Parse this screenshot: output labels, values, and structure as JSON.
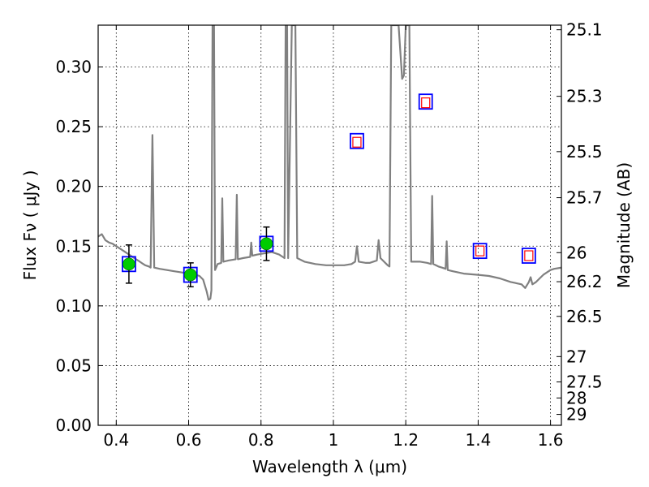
{
  "chart_data": {
    "type": "scatter",
    "title": "",
    "xlabel": "Wavelength  λ (μm)",
    "ylabel": "Flux  Fν  ( μJy )",
    "y2label": "Magnitude (AB)",
    "xlim": [
      0.35,
      1.63
    ],
    "ylim": [
      0.0,
      0.335
    ],
    "grid": true,
    "x_ticks": [
      0.4,
      0.6,
      0.8,
      1.0,
      1.2,
      1.4,
      1.6
    ],
    "x_tick_labels": [
      "0.4",
      "0.6",
      "0.8",
      "1",
      "1.2",
      "1.4",
      "1.6"
    ],
    "y_ticks": [
      0.0,
      0.05,
      0.1,
      0.15,
      0.2,
      0.25,
      0.3
    ],
    "y_tick_labels": [
      "0.00",
      "0.05",
      "0.10",
      "0.15",
      "0.20",
      "0.25",
      "0.30"
    ],
    "y2_ticks": [
      25.1,
      25.3,
      25.5,
      25.7,
      26,
      26.2,
      26.5,
      27,
      27.5,
      28,
      29
    ],
    "y2_tick_labels": [
      "25.1",
      "25.3",
      "25.5",
      "25.7",
      "26",
      "26.2",
      "26.5",
      "27",
      "27.5",
      "28",
      "29"
    ],
    "series": [
      {
        "kind": "line",
        "color": "#808080",
        "points": [
          [
            0.35,
            0.158
          ],
          [
            0.36,
            0.16
          ],
          [
            0.37,
            0.155
          ],
          [
            0.38,
            0.153
          ],
          [
            0.39,
            0.152
          ],
          [
            0.4,
            0.15
          ],
          [
            0.41,
            0.148
          ],
          [
            0.42,
            0.146
          ],
          [
            0.43,
            0.144
          ],
          [
            0.44,
            0.142
          ],
          [
            0.45,
            0.14
          ],
          [
            0.46,
            0.138
          ],
          [
            0.47,
            0.136
          ],
          [
            0.48,
            0.134
          ],
          [
            0.49,
            0.133
          ],
          [
            0.495,
            0.132
          ],
          [
            0.498,
            0.2
          ],
          [
            0.5,
            0.243
          ],
          [
            0.502,
            0.2
          ],
          [
            0.505,
            0.132
          ],
          [
            0.52,
            0.131
          ],
          [
            0.54,
            0.13
          ],
          [
            0.56,
            0.129
          ],
          [
            0.58,
            0.128
          ],
          [
            0.6,
            0.127
          ],
          [
            0.62,
            0.126
          ],
          [
            0.63,
            0.125
          ],
          [
            0.64,
            0.122
          ],
          [
            0.65,
            0.112
          ],
          [
            0.655,
            0.105
          ],
          [
            0.66,
            0.106
          ],
          [
            0.663,
            0.113
          ],
          [
            0.666,
            0.335
          ],
          [
            0.67,
            0.335
          ],
          [
            0.673,
            0.13
          ],
          [
            0.68,
            0.135
          ],
          [
            0.69,
            0.136
          ],
          [
            0.693,
            0.19
          ],
          [
            0.696,
            0.137
          ],
          [
            0.71,
            0.138
          ],
          [
            0.73,
            0.139
          ],
          [
            0.733,
            0.193
          ],
          [
            0.736,
            0.139
          ],
          [
            0.75,
            0.14
          ],
          [
            0.77,
            0.141
          ],
          [
            0.773,
            0.153
          ],
          [
            0.776,
            0.142
          ],
          [
            0.79,
            0.143
          ],
          [
            0.81,
            0.144
          ],
          [
            0.83,
            0.145
          ],
          [
            0.85,
            0.143
          ],
          [
            0.86,
            0.141
          ],
          [
            0.865,
            0.14
          ],
          [
            0.868,
            0.335
          ],
          [
            0.872,
            0.335
          ],
          [
            0.875,
            0.14
          ],
          [
            0.885,
            0.335
          ],
          [
            0.895,
            0.335
          ],
          [
            0.9,
            0.14
          ],
          [
            0.92,
            0.137
          ],
          [
            0.95,
            0.135
          ],
          [
            0.98,
            0.134
          ],
          [
            1.0,
            0.134
          ],
          [
            1.03,
            0.134
          ],
          [
            1.05,
            0.135
          ],
          [
            1.06,
            0.137
          ],
          [
            1.065,
            0.15
          ],
          [
            1.07,
            0.137
          ],
          [
            1.09,
            0.136
          ],
          [
            1.1,
            0.136
          ],
          [
            1.12,
            0.138
          ],
          [
            1.125,
            0.155
          ],
          [
            1.13,
            0.14
          ],
          [
            1.15,
            0.134
          ],
          [
            1.155,
            0.133
          ],
          [
            1.16,
            0.335
          ],
          [
            1.18,
            0.335
          ],
          [
            1.19,
            0.29
          ],
          [
            1.195,
            0.293
          ],
          [
            1.2,
            0.335
          ],
          [
            1.21,
            0.335
          ],
          [
            1.215,
            0.137
          ],
          [
            1.24,
            0.137
          ],
          [
            1.26,
            0.136
          ],
          [
            1.27,
            0.135
          ],
          [
            1.273,
            0.192
          ],
          [
            1.276,
            0.135
          ],
          [
            1.29,
            0.133
          ],
          [
            1.3,
            0.132
          ],
          [
            1.31,
            0.131
          ],
          [
            1.313,
            0.154
          ],
          [
            1.316,
            0.13
          ],
          [
            1.33,
            0.129
          ],
          [
            1.36,
            0.127
          ],
          [
            1.4,
            0.126
          ],
          [
            1.43,
            0.125
          ],
          [
            1.46,
            0.123
          ],
          [
            1.49,
            0.12
          ],
          [
            1.52,
            0.118
          ],
          [
            1.53,
            0.115
          ],
          [
            1.54,
            0.12
          ],
          [
            1.545,
            0.124
          ],
          [
            1.55,
            0.118
          ],
          [
            1.56,
            0.12
          ],
          [
            1.57,
            0.123
          ],
          [
            1.58,
            0.126
          ],
          [
            1.59,
            0.128
          ],
          [
            1.6,
            0.13
          ],
          [
            1.61,
            0.131
          ],
          [
            1.63,
            0.132
          ]
        ]
      },
      {
        "kind": "model_squares",
        "marker_color": "#0000ff",
        "points": [
          [
            0.435,
            0.135
          ],
          [
            0.605,
            0.126
          ],
          [
            0.815,
            0.152
          ],
          [
            1.065,
            0.238
          ],
          [
            1.255,
            0.271
          ],
          [
            1.405,
            0.146
          ],
          [
            1.54,
            0.142
          ]
        ]
      },
      {
        "kind": "measured",
        "marker_color": "#00cc00",
        "points": [
          [
            0.435,
            0.135,
            0.016
          ],
          [
            0.605,
            0.126,
            0.01
          ],
          [
            0.815,
            0.152,
            0.014
          ]
        ]
      },
      {
        "kind": "upper_limits",
        "marker_color": "#ff0000",
        "points": [
          [
            1.065,
            0.237
          ],
          [
            1.255,
            0.27
          ],
          [
            1.405,
            0.146
          ],
          [
            1.54,
            0.142
          ]
        ]
      }
    ]
  }
}
